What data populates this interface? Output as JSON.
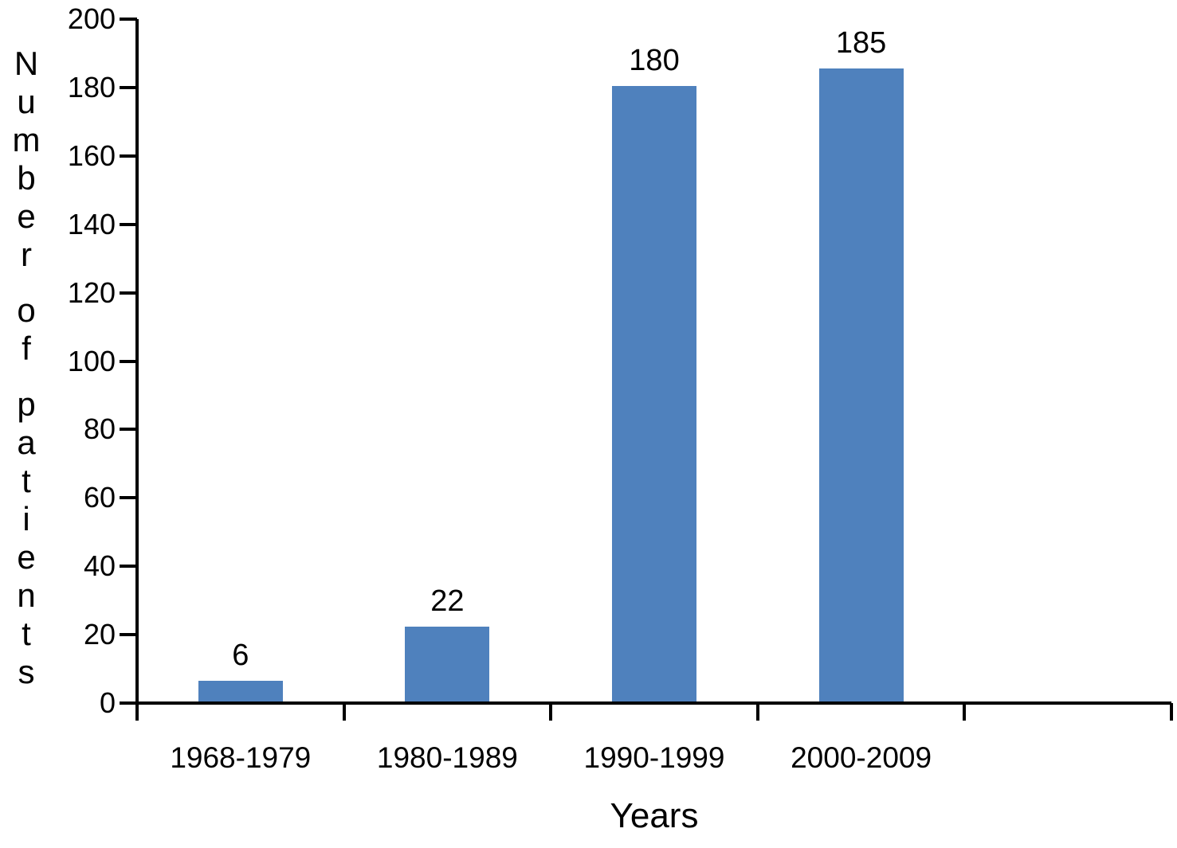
{
  "chart_data": {
    "type": "bar",
    "title": "",
    "categories": [
      "1968-1979",
      "1980-1989",
      "1990-1999",
      "2000-2009"
    ],
    "values": [
      6,
      22,
      180,
      185
    ],
    "data_labels": [
      "6",
      "22",
      "180",
      "185"
    ],
    "xlabel": "Years",
    "ylabel": "Number of patients",
    "ylim": [
      0,
      200
    ],
    "ytick_step": 20,
    "yticks": [
      "0",
      "20",
      "40",
      "60",
      "80",
      "100",
      "120",
      "140",
      "160",
      "180",
      "200"
    ],
    "x_slots": 5,
    "grid": false,
    "legend": null,
    "bar_color": "#4f81bd",
    "axis_color": "#000000",
    "text_color": "#000000",
    "background_color": "#ffffff"
  }
}
